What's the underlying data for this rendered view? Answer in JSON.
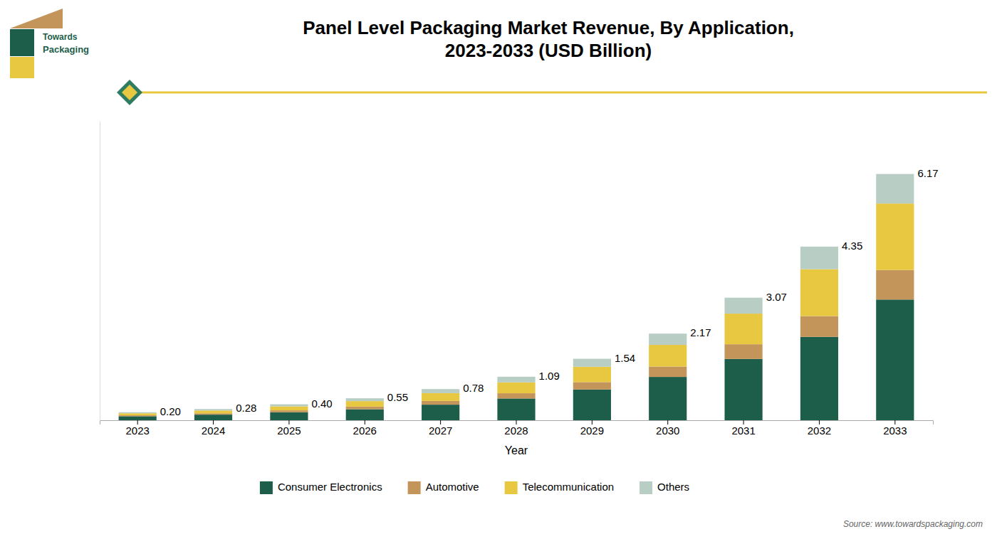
{
  "chart_data": {
    "type": "bar",
    "stacked": true,
    "title": "Panel Level Packaging Market Revenue, By Application,\n2023-2033 (USD Billion)",
    "x_label": "Year",
    "categories": [
      "2023",
      "2024",
      "2025",
      "2026",
      "2027",
      "2028",
      "2029",
      "2030",
      "2031",
      "2032",
      "2033"
    ],
    "series": [
      {
        "name": "Consumer Electronics",
        "color": "#1C5E4A",
        "values": [
          0.1,
          0.14,
          0.2,
          0.275,
          0.39,
          0.545,
          0.77,
          1.085,
          1.535,
          2.088,
          3.0233
        ]
      },
      {
        "name": "Automotive",
        "color": "#C4955A",
        "values": [
          0.024,
          0.0336,
          0.048,
          0.066,
          0.0936,
          0.1308,
          0.1848,
          0.2604,
          0.3684,
          0.522,
          0.7404
        ]
      },
      {
        "name": "Telecommunication",
        "color": "#E8C840",
        "values": [
          0.05,
          0.07,
          0.1,
          0.1375,
          0.195,
          0.2725,
          0.385,
          0.5425,
          0.7675,
          1.1745,
          1.6659
        ]
      },
      {
        "name": "Others",
        "color": "#B8CEC4",
        "values": [
          0.026,
          0.0364,
          0.052,
          0.0715,
          0.1014,
          0.1417,
          0.2002,
          0.2821,
          0.3991,
          0.5655,
          0.7404
        ]
      }
    ],
    "totals": [
      0.2,
      0.28,
      0.4,
      0.55,
      0.78,
      1.09,
      1.54,
      2.17,
      3.07,
      4.35,
      6.17
    ],
    "total_labels": [
      "0.20",
      "0.28",
      "0.40",
      "0.55",
      "0.78",
      "1.09",
      "1.54",
      "2.17",
      "3.07",
      "4.35",
      "6.17"
    ],
    "ylim": [
      0,
      7.5
    ],
    "grid": false,
    "legend": "bottom",
    "tick_labels": "x",
    "annotations": [
      "Towards",
      "Packaging",
      "Source: www.towardspackaging.com"
    ]
  }
}
